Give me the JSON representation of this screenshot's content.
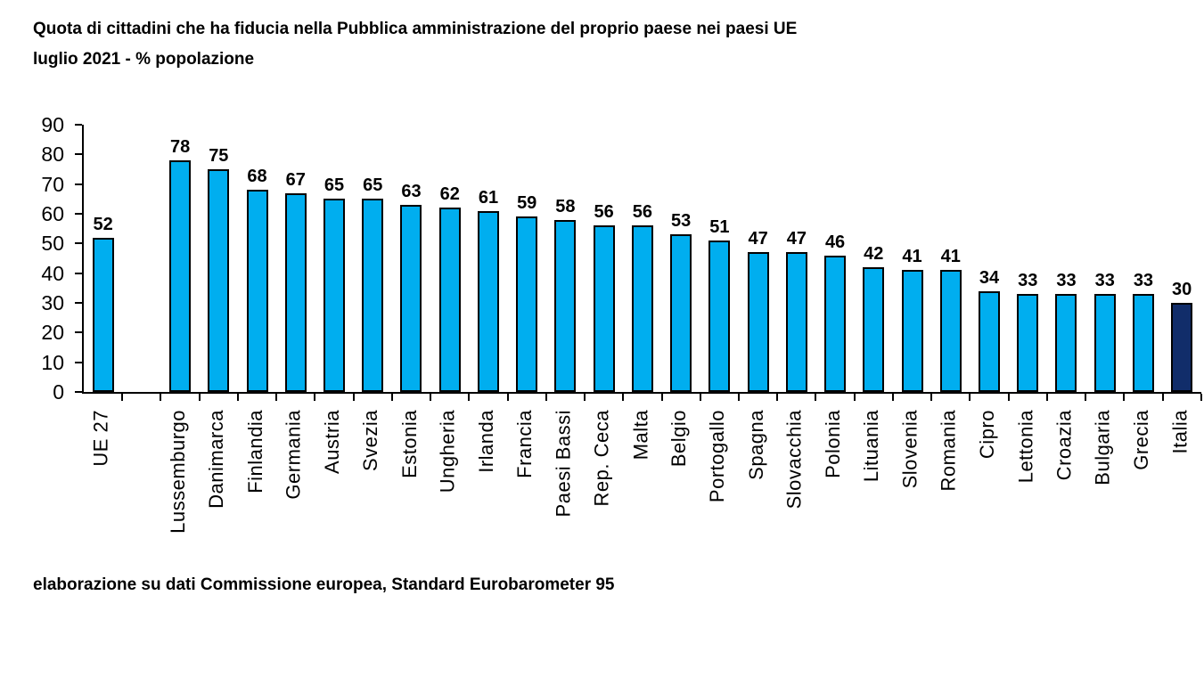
{
  "title": {
    "line1": "Quota di cittadini che ha fiducia nella Pubblica amministrazione del proprio paese nei paesi UE",
    "line2": "luglio 2021 - % popolazione"
  },
  "footer": "elaborazione su dati Commissione europea, Standard Eurobarometer 95",
  "chart_data": {
    "type": "bar",
    "categories": [
      "UE 27",
      "Lussemburgo",
      "Danimarca",
      "Finlandia",
      "Germania",
      "Austria",
      "Svezia",
      "Estonia",
      "Ungheria",
      "Irlanda",
      "Francia",
      "Paesi Bassi",
      "Rep. Ceca",
      "Malta",
      "Belgio",
      "Portogallo",
      "Spagna",
      "Slovacchia",
      "Polonia",
      "Lituania",
      "Slovenia",
      "Romania",
      "Cipro",
      "Lettonia",
      "Croazia",
      "Bulgaria",
      "Grecia",
      "Italia"
    ],
    "values": [
      52,
      78,
      75,
      68,
      67,
      65,
      65,
      63,
      62,
      61,
      59,
      58,
      56,
      56,
      53,
      51,
      47,
      47,
      46,
      42,
      41,
      41,
      34,
      33,
      33,
      33,
      33,
      30
    ],
    "title": "Quota di cittadini che ha fiducia nella Pubblica amministrazione del proprio paese nei paesi UE",
    "subtitle": "luglio 2021 - % popolazione",
    "xlabel": "",
    "ylabel": "",
    "ylim": [
      0,
      90
    ],
    "ytick_step": 10,
    "grid": false,
    "legend": false,
    "value_labels": true,
    "gap_after_index": 0,
    "bar_color": "#00AEEF",
    "highlight_category": "Italia",
    "highlight_color": "#112D6A",
    "bar_border_color": "#000000",
    "axis_color": "#000000"
  }
}
